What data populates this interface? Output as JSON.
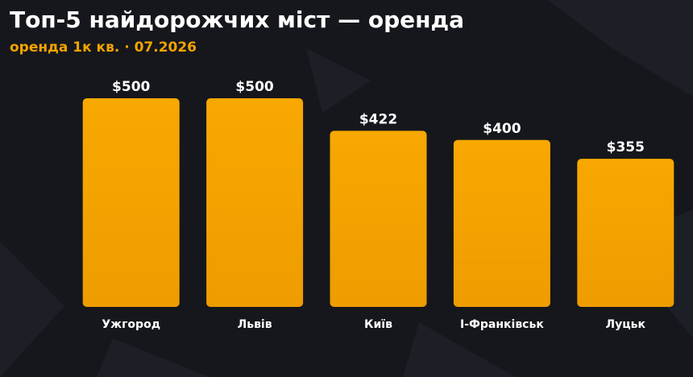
{
  "chart_data": {
    "type": "bar",
    "title": "Топ-5 найдорожчих міст — оренда",
    "subtitle": "оренда 1к кв. · 07.2026",
    "categories": [
      "Ужгород",
      "Львів",
      "Київ",
      "І-Франківськ",
      "Луцьк"
    ],
    "values": [
      500,
      500,
      422,
      400,
      355
    ],
    "value_labels": [
      "$500",
      "$500",
      "$422",
      "$400",
      "$355"
    ],
    "color": "#f5a300"
  }
}
